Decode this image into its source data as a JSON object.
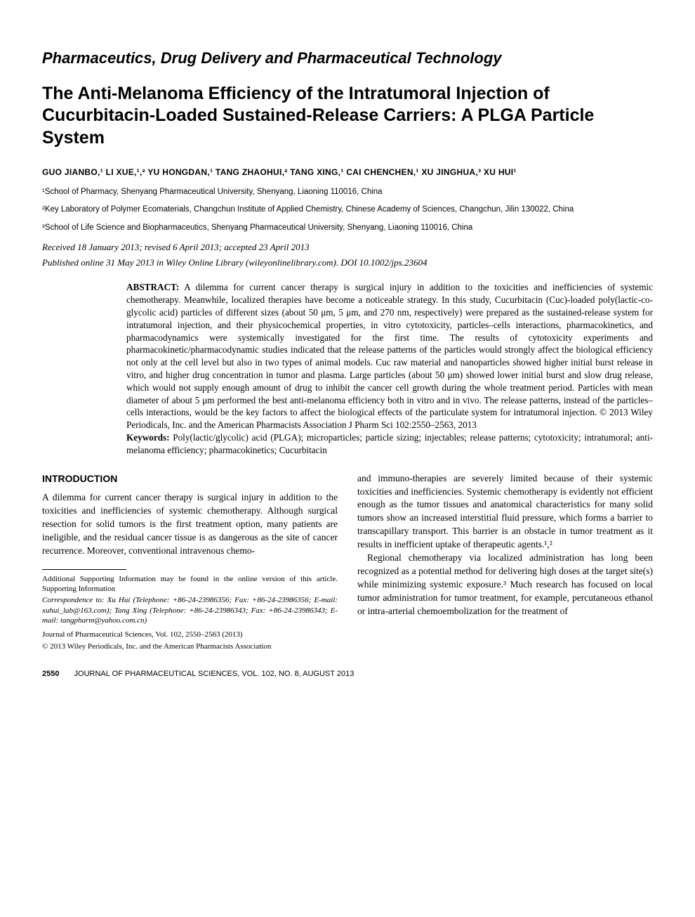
{
  "section_header": "Pharmaceutics, Drug Delivery and Pharmaceutical Technology",
  "title": "The Anti-Melanoma Efficiency of the Intratumoral Injection of Cucurbitacin-Loaded Sustained-Release Carriers: A PLGA Particle System",
  "authors_line": "GUO JIANBO,¹ LI XUE,¹,² YU HONGDAN,¹ TANG ZHAOHUI,² TANG XING,¹ CAI CHENCHEN,¹ XU JINGHUA,³ XU HUI¹",
  "affiliations": {
    "a1": "¹School of Pharmacy, Shenyang Pharmaceutical University, Shenyang, Liaoning 110016, China",
    "a2": "²Key Laboratory of Polymer Ecomaterials, Changchun Institute of Applied Chemistry, Chinese Academy of Sciences, Changchun, Jilin 130022, China",
    "a3": "³School of Life Science and Biopharmaceutics, Shenyang Pharmaceutical University, Shenyang, Liaoning 110016, China"
  },
  "dates": "Received 18 January 2013; revised 6 April 2013; accepted 23 April 2013",
  "pubinfo": "Published online 31 May 2013 in Wiley Online Library (wileyonlinelibrary.com). DOI 10.1002/jps.23604",
  "abstract": {
    "label": "ABSTRACT:",
    "text": "A dilemma for current cancer therapy is surgical injury in addition to the toxicities and inefficiencies of systemic chemotherapy. Meanwhile, localized therapies have become a noticeable strategy. In this study, Cucurbitacin (Cuc)-loaded poly(lactic-co-glycolic acid) particles of different sizes (about 50 μm, 5 μm, and 270 nm, respectively) were prepared as the sustained-release system for intratumoral injection, and their physicochemical properties, in vitro cytotoxicity, particles–cells interactions, pharmacokinetics, and pharmacodynamics were systemically investigated for the first time. The results of cytotoxicity experiments and pharmacokinetic/pharmacodynamic studies indicated that the release patterns of the particles would strongly affect the biological efficiency not only at the cell level but also in two types of animal models. Cuc raw material and nanoparticles showed higher initial burst release in vitro, and higher drug concentration in tumor and plasma. Large particles (about 50 μm) showed lower initial burst and slow drug release, which would not supply enough amount of drug to inhibit the cancer cell growth during the whole treatment period. Particles with mean diameter of about 5 μm performed the best anti-melanoma efficiency both in vitro and in vivo. The release patterns, instead of the particles–cells interactions, would be the key factors to affect the biological effects of the particulate system for intratumoral injection. © 2013 Wiley Periodicals, Inc. and the American Pharmacists Association J Pharm Sci 102:2550–2563, 2013"
  },
  "keywords": {
    "label": "Keywords:",
    "text": "Poly(lactic/glycolic) acid (PLGA); microparticles; particle sizing; injectables; release patterns; cytotoxicity; intratumoral; anti-melanoma efficiency; pharmacokinetics; Cucurbitacin"
  },
  "intro": {
    "heading": "INTRODUCTION",
    "left_p1": "A dilemma for current cancer therapy is surgical injury in addition to the toxicities and inefficiencies of systemic chemotherapy. Although surgical resection for solid tumors is the first treatment option, many patients are ineligible, and the residual cancer tissue is as dangerous as the site of cancer recurrence. Moreover, conventional intravenous chemo-",
    "right_p1": "and immuno-therapies are severely limited because of their systemic toxicities and inefficiencies. Systemic chemotherapy is evidently not efficient enough as the tumor tissues and anatomical characteristics for many solid tumors show an increased interstitial fluid pressure, which forms a barrier to transcapillary transport. This barrier is an obstacle in tumor treatment as it results in inefficient uptake of therapeutic agents.¹,²",
    "right_p2": "Regional chemotherapy via localized administration has long been recognized as a potential method for delivering high doses at the target site(s) while minimizing systemic exposure.³ Much research has focused on local tumor administration for tumor treatment, for example, percutaneous ethanol or intra-arterial chemoembolization for the treatment of"
  },
  "footnotes": {
    "supporting": "Additional Supporting Information may be found in the online version of this article. Supporting Information",
    "correspondence": "Correspondence to: Xu Hui (Telephone: +86-24-23986356; Fax: +86-24-23986356; E-mail: xuhui_lab@163.com); Tang Xing (Telephone: +86-24-23986343; Fax: +86-24-23986343; E-mail: tangpharm@yahoo.com.cn)",
    "journal": "Journal of Pharmaceutical Sciences, Vol. 102, 2550–2563 (2013)",
    "copyright": "© 2013 Wiley Periodicals, Inc. and the American Pharmacists Association"
  },
  "footer": {
    "page": "2550",
    "text": "JOURNAL OF PHARMACEUTICAL SCIENCES, VOL. 102, NO. 8, AUGUST 2013"
  }
}
